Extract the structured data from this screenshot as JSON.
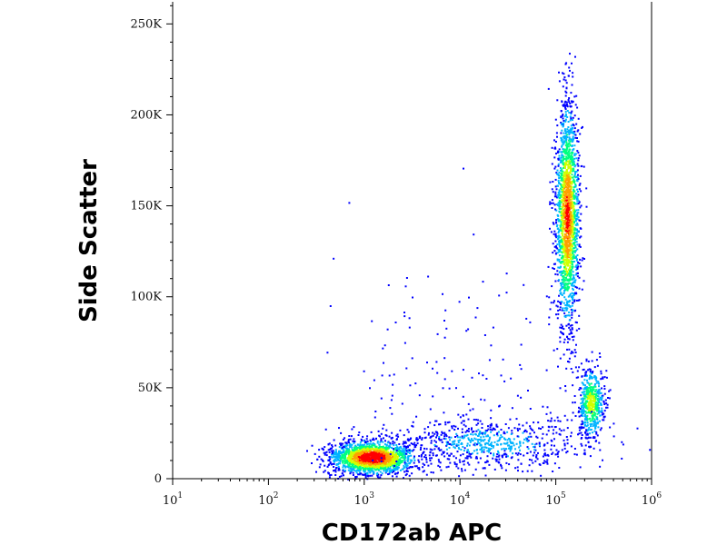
{
  "chart_data": {
    "type": "scatter",
    "subtype": "flow-cytometry density dot plot",
    "xlabel": "CD172ab APC",
    "ylabel": "Side Scatter",
    "x_scale": "log",
    "xlim": [
      10,
      1000000
    ],
    "ylim": [
      0,
      262144
    ],
    "x_ticks": [
      {
        "value": 10,
        "base": "10",
        "exp": "1"
      },
      {
        "value": 100,
        "base": "10",
        "exp": "2"
      },
      {
        "value": 1000,
        "base": "10",
        "exp": "3"
      },
      {
        "value": 10000,
        "base": "10",
        "exp": "4"
      },
      {
        "value": 100000,
        "base": "10",
        "exp": "5"
      },
      {
        "value": 1000000,
        "base": "10",
        "exp": "6"
      }
    ],
    "y_ticks": [
      {
        "value": 0,
        "label": "0"
      },
      {
        "value": 50000,
        "label": "50K"
      },
      {
        "value": 100000,
        "label": "100K"
      },
      {
        "value": 150000,
        "label": "150K"
      },
      {
        "value": 200000,
        "label": "200K"
      },
      {
        "value": 250000,
        "label": "250K"
      }
    ],
    "grid": false,
    "legend": "none",
    "colormap": [
      "#0000ff",
      "#00b4ff",
      "#00ff80",
      "#d0ff00",
      "#ffa000",
      "#ff0000"
    ],
    "populations": [
      {
        "center_x": 1200,
        "center_y": 12000,
        "spread_log_x": 0.22,
        "spread_y": 4500,
        "events": 1800,
        "peak_density": 1.0
      },
      {
        "center_x": 130000,
        "center_y": 145000,
        "spread_log_x": 0.06,
        "spread_y": 30000,
        "events": 1900,
        "peak_density": 0.85
      },
      {
        "center_x": 230000,
        "center_y": 42000,
        "spread_log_x": 0.07,
        "spread_y": 10000,
        "events": 550,
        "peak_density": 0.55
      },
      {
        "center_x": 20000,
        "center_y": 20000,
        "spread_log_x": 0.55,
        "spread_y": 7000,
        "events": 700,
        "peak_density": 0.2
      },
      {
        "center_x": 8000,
        "center_y": 60000,
        "spread_log_x": 0.7,
        "spread_y": 35000,
        "events": 140,
        "peak_density": 0.05
      }
    ]
  }
}
